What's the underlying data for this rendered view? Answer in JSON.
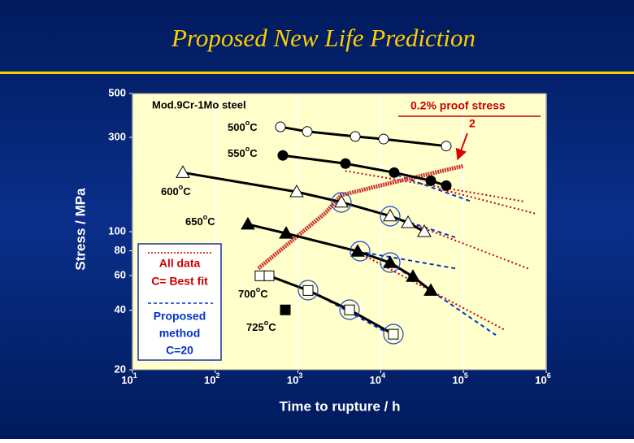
{
  "chart_data": {
    "type": "line",
    "title": "Proposed New Life Prediction",
    "xlabel": "Time to rupture   / h",
    "ylabel": "Stress   / MPa",
    "annotation": "Mod.9Cr-1Mo steel",
    "xscale": "log",
    "yscale": "log",
    "xlim": [
      10,
      1000000
    ],
    "ylim": [
      20,
      500
    ],
    "xticks": [
      {
        "value": 10,
        "label": "10",
        "sup": "1"
      },
      {
        "value": 100,
        "label": "10",
        "sup": "2"
      },
      {
        "value": 1000,
        "label": "10",
        "sup": "3"
      },
      {
        "value": 10000,
        "label": "10",
        "sup": "4"
      },
      {
        "value": 100000,
        "label": "10",
        "sup": "5"
      },
      {
        "value": 1000000,
        "label": "10",
        "sup": "6"
      }
    ],
    "yticks": [
      20,
      40,
      60,
      80,
      100,
      300,
      500
    ],
    "grid": true,
    "series": [
      {
        "name": "500",
        "name_sup": "o",
        "name_unit": "C",
        "marker": "circle",
        "filled": false,
        "color": "#000000",
        "x": [
          614,
          1294,
          4920,
          10840,
          61900
        ],
        "y": [
          339,
          321,
          303,
          294,
          271
        ]
      },
      {
        "name": "550",
        "name_sup": "o",
        "name_unit": "C",
        "marker": "circle",
        "filled": true,
        "color": "#000000",
        "x": [
          656,
          3750,
          14550,
          40300,
          61900
        ],
        "y": [
          243,
          221,
          199,
          181,
          171
        ]
      },
      {
        "name": "600",
        "name_sup": "o",
        "name_unit": "C",
        "marker": "triangle",
        "filled": false,
        "color": "#000000",
        "x": [
          40.6,
          964,
          3350,
          13000,
          21400,
          33600
        ],
        "y": [
          199,
          159,
          141,
          120,
          111,
          100
        ]
      },
      {
        "name": "650",
        "name_sup": "o",
        "name_unit": "C",
        "marker": "triangle",
        "filled": true,
        "color": "#000000",
        "x": [
          248,
          719,
          5260,
          13000,
          24500,
          40300
        ],
        "y": [
          109,
          98,
          79.5,
          69.6,
          59.3,
          50.4
        ]
      },
      {
        "name": "700",
        "name_sup": "o",
        "name_unit": "C",
        "marker": "square",
        "filled": false,
        "color": "#000000",
        "x": [
          348,
          447,
          1324,
          4200,
          14200
        ],
        "y": [
          59.8,
          59.8,
          50.4,
          40.2,
          30.3
        ]
      },
      {
        "name": "725",
        "name_sup": "o",
        "name_unit": "C",
        "marker": "square",
        "filled": true,
        "color": "#000000",
        "x": [
          703
        ],
        "y": [
          40.2
        ]
      }
    ],
    "proof_stress": {
      "name": "0.2% proof stress",
      "note": "2",
      "color": "#cc3333",
      "x": [
        333,
        2130,
        3350,
        13000,
        99500
      ],
      "y": [
        65.2,
        124,
        153,
        176,
        215
      ]
    },
    "fit_lines": [
      {
        "legend": [
          "All data",
          "C= Best fit"
        ],
        "color": "#cc0000",
        "dash": "dotted",
        "lines": [
          {
            "x": [
              3730,
              543000
            ],
            "y": [
              203,
              142
            ]
          },
          {
            "x": [
              50500,
              762000
            ],
            "y": [
              165,
              123
            ]
          },
          {
            "x": [
              13000,
              608000
            ],
            "y": [
              121,
              65
            ]
          },
          {
            "x": [
              6590,
              308000
            ],
            "y": [
              75,
              32
            ]
          }
        ]
      },
      {
        "legend": [
          "Proposed",
          "method",
          "C=20"
        ],
        "color": "#0033cc",
        "dash": "dashed",
        "lines": [
          {
            "x": [
              13000,
              119000
            ],
            "y": [
              199,
              143
            ]
          },
          {
            "x": [
              10400,
              79400
            ],
            "y": [
              124,
              93.6
            ]
          },
          {
            "x": [
              5260,
              79400
            ],
            "y": [
              79.5,
              65.2
            ]
          },
          {
            "x": [
              13000,
              246000
            ],
            "y": [
              69.6,
              30
            ]
          },
          {
            "x": [
              1380,
              11600
            ],
            "y": [
              50.4,
              31
            ]
          }
        ]
      }
    ]
  }
}
